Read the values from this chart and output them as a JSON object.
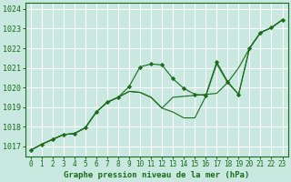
{
  "title": "Graphe pression niveau de la mer (hPa)",
  "bg_color": "#c8e8e0",
  "plot_bg_color": "#c8e8e0",
  "grid_color": "#ffffff",
  "line_color": "#1a6b1a",
  "xlim": [
    -0.5,
    23.5
  ],
  "ylim": [
    1016.5,
    1024.3
  ],
  "yticks": [
    1017,
    1018,
    1019,
    1020,
    1021,
    1022,
    1023,
    1024
  ],
  "xticks": [
    0,
    1,
    2,
    3,
    4,
    5,
    6,
    7,
    8,
    9,
    10,
    11,
    12,
    13,
    14,
    15,
    16,
    17,
    18,
    19,
    20,
    21,
    22,
    23
  ],
  "s1": [
    1016.8,
    1017.1,
    1017.35,
    1017.6,
    1017.65,
    1017.95,
    1018.75,
    1019.25,
    1019.5,
    1020.05,
    1021.05,
    1021.2,
    1021.15,
    1020.45,
    1019.95,
    1019.65,
    1019.6,
    1021.3,
    1020.3,
    1019.65,
    1022.0,
    1022.8,
    1023.05,
    1023.45
  ],
  "s2": [
    1016.8,
    1017.1,
    1017.35,
    1017.6,
    1017.65,
    1017.95,
    1018.75,
    1019.25,
    1019.5,
    1019.8,
    1019.75,
    1019.5,
    1018.95,
    1018.75,
    1018.45,
    1018.45,
    1019.55,
    1021.2,
    1020.25,
    1019.65,
    1022.0,
    1022.8,
    1023.05,
    1023.45
  ],
  "s3": [
    1016.8,
    1017.1,
    1017.35,
    1017.6,
    1017.65,
    1017.95,
    1018.75,
    1019.25,
    1019.5,
    1019.8,
    1019.75,
    1019.5,
    1018.95,
    1019.5,
    1019.55,
    1019.6,
    1019.65,
    1019.7,
    1020.25,
    1021.0,
    1022.0,
    1022.8,
    1023.05,
    1023.45
  ]
}
